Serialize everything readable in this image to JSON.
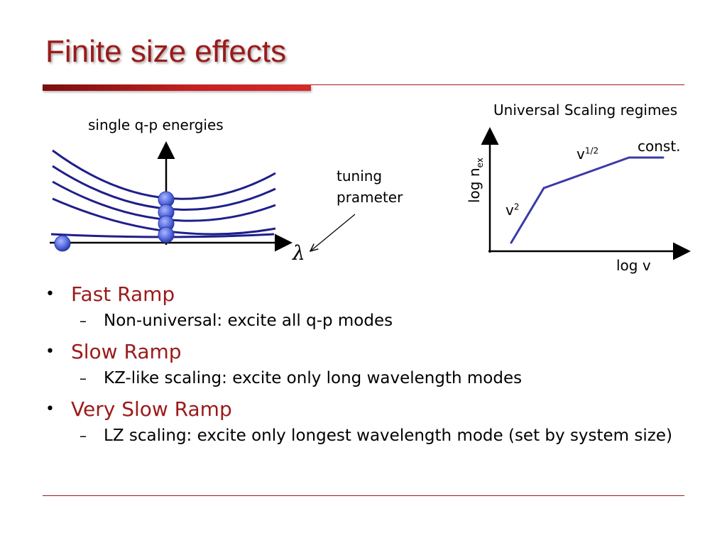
{
  "slide": {
    "title": "Finite size effects"
  },
  "left_diagram": {
    "top_label": "single q-p energies",
    "tuning_label_line1": "tuning",
    "tuning_label_line2": "prameter",
    "axis_symbol": "λ"
  },
  "chart_data": {
    "type": "line",
    "title": "Universal Scaling regimes",
    "xlabel": "log v",
    "ylabel_main": "log n",
    "ylabel_sub": "ex",
    "segments": [
      {
        "label_base": "v",
        "label_sup": "2"
      },
      {
        "label_base": "v",
        "label_sup": "1/2"
      },
      {
        "label": "const."
      }
    ],
    "grid": false
  },
  "bullets": [
    {
      "text": "Fast Ramp",
      "sub": "Non-universal: excite all q-p modes"
    },
    {
      "text": "Slow Ramp",
      "sub": "KZ-like scaling: excite only long wavelength modes"
    },
    {
      "text": "Very Slow Ramp",
      "sub": "LZ scaling: excite only longest wavelength mode (set by system size)"
    }
  ],
  "colors": {
    "title": "#9c1a1a",
    "curve": "#1f1f8a",
    "ball": "#5a6ee0",
    "chart_line": "#3a3aa8"
  }
}
